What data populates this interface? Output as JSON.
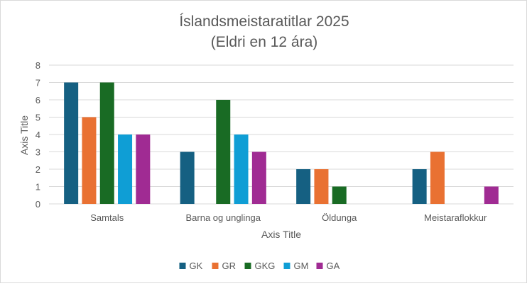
{
  "chart_data": {
    "type": "bar",
    "title": "Íslandsmeistaratitlar 2025",
    "subtitle": "(Eldri en 12 ára)",
    "xlabel": "Axis Title",
    "ylabel": "Axis Title",
    "ylim": [
      0,
      8
    ],
    "yticks": [
      "0",
      "1",
      "2",
      "3",
      "4",
      "5",
      "6",
      "7",
      "8"
    ],
    "grid": true,
    "legend_position": "bottom",
    "categories": [
      "Samtals",
      "Barna og unglinga",
      "Öldunga",
      "Meistaraflokkur"
    ],
    "series": [
      {
        "name": "GK",
        "color": "#156082",
        "values": [
          7,
          3,
          2,
          2
        ]
      },
      {
        "name": "GR",
        "color": "#E97132",
        "values": [
          5,
          0,
          2,
          3
        ]
      },
      {
        "name": "GKG",
        "color": "#196B24",
        "values": [
          7,
          6,
          1,
          0
        ]
      },
      {
        "name": "GM",
        "color": "#0F9ED5",
        "values": [
          4,
          4,
          0,
          0
        ]
      },
      {
        "name": "GA",
        "color": "#A02B93",
        "values": [
          4,
          3,
          0,
          1
        ]
      }
    ]
  }
}
